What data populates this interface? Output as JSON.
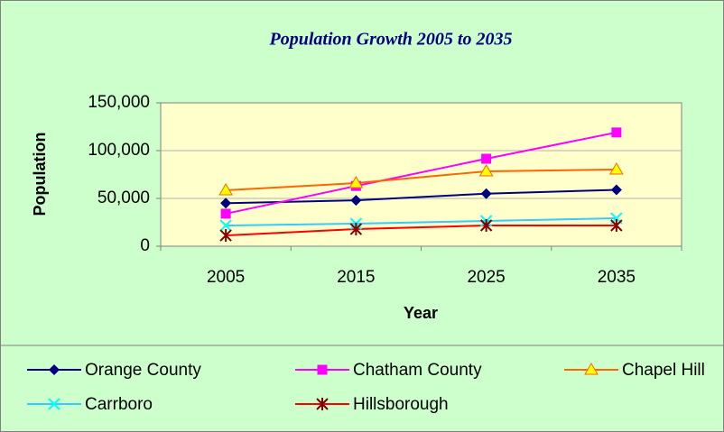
{
  "chart_data": {
    "type": "line",
    "title": "Population Growth 2005 to 2035",
    "x_label": "Year",
    "y_label": "Population",
    "categories": [
      "2005",
      "2015",
      "2025",
      "2035"
    ],
    "series": [
      {
        "name": "Orange County",
        "color": "#000080",
        "marker": "diamond",
        "marker_color": "#000080",
        "values": [
          45000,
          48000,
          55000,
          59000
        ]
      },
      {
        "name": "Chatham County",
        "color": "#ff00ff",
        "marker": "square",
        "marker_color": "#ff00ff",
        "values": [
          34000,
          63000,
          91500,
          119000
        ]
      },
      {
        "name": "Chapel Hill",
        "color": "#ff6600",
        "marker": "triangle",
        "marker_color": "#ffff00",
        "values": [
          58500,
          66000,
          78300,
          80200
        ]
      },
      {
        "name": "Carrboro",
        "color": "#33ccff",
        "marker": "x",
        "marker_color": "#00ffff",
        "values": [
          21700,
          23600,
          26400,
          29200
        ]
      },
      {
        "name": "Hillsborough",
        "color": "#ff0000",
        "marker": "star",
        "marker_color": "#800000",
        "values": [
          11300,
          17900,
          21700,
          21700
        ]
      }
    ],
    "ylim": [
      0,
      150000
    ],
    "yticks": [
      0,
      {
        "value": 50000,
        "label": "50,000"
      },
      {
        "value": 100000,
        "label": "100,000"
      },
      {
        "value": 150000,
        "label": "150,000"
      }
    ],
    "grid": true,
    "legend": "bottom"
  }
}
